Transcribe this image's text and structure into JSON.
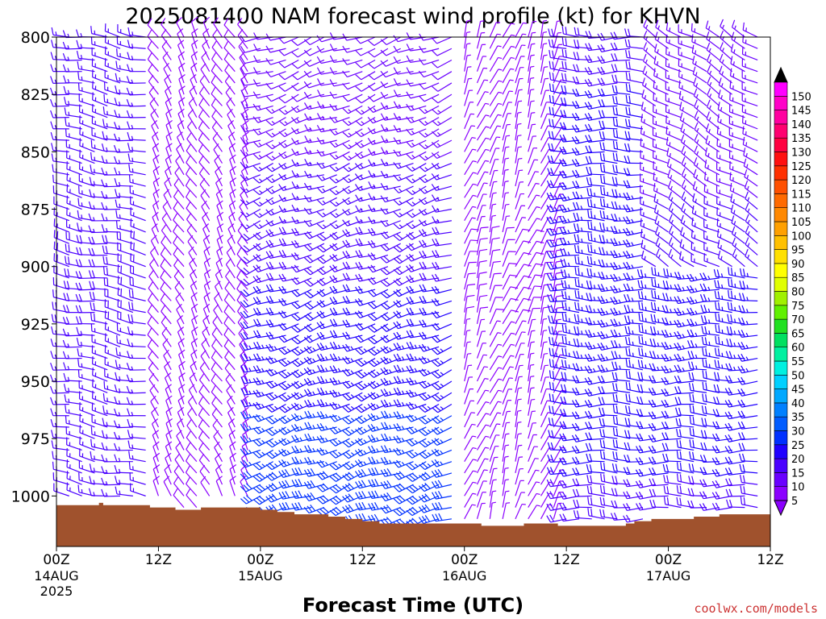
{
  "chart_data": {
    "type": "wind_barb_profile",
    "title": "2025081400 NAM forecast wind profile (kt) for KHVN",
    "xlabel": "Forecast Time (UTC)",
    "ylabel": "",
    "credit": "coolwx.com/models",
    "x_range_hours": [
      0,
      84
    ],
    "x_ticks": [
      {
        "hour": 0,
        "label": "00Z",
        "date": "14AUG",
        "year": "2025"
      },
      {
        "hour": 12,
        "label": "12Z",
        "date": "",
        "year": ""
      },
      {
        "hour": 24,
        "label": "00Z",
        "date": "15AUG",
        "year": ""
      },
      {
        "hour": 36,
        "label": "12Z",
        "date": "",
        "year": ""
      },
      {
        "hour": 48,
        "label": "00Z",
        "date": "16AUG",
        "year": ""
      },
      {
        "hour": 60,
        "label": "12Z",
        "date": "",
        "year": ""
      },
      {
        "hour": 72,
        "label": "00Z",
        "date": "17AUG",
        "year": ""
      },
      {
        "hour": 84,
        "label": "12Z",
        "date": "",
        "year": ""
      }
    ],
    "y_range_hpa": [
      800,
      1022
    ],
    "y_ticks": [
      {
        "p": 800,
        "label": "800"
      },
      {
        "p": 825,
        "label": "825"
      },
      {
        "p": 850,
        "label": "850"
      },
      {
        "p": 875,
        "label": "875"
      },
      {
        "p": 900,
        "label": "900"
      },
      {
        "p": 925,
        "label": "925"
      },
      {
        "p": 950,
        "label": "950"
      },
      {
        "p": 975,
        "label": "975"
      },
      {
        "p": 1000,
        "label": "1000"
      }
    ],
    "surface_pressure": [
      {
        "hour": 0,
        "p": 1004
      },
      {
        "hour": 4.5,
        "p": 1004
      },
      {
        "hour": 5,
        "p": 1003
      },
      {
        "hour": 5.5,
        "p": 1004
      },
      {
        "hour": 10.5,
        "p": 1004
      },
      {
        "hour": 11,
        "p": 1005
      },
      {
        "hour": 13.5,
        "p": 1005
      },
      {
        "hour": 14,
        "p": 1006
      },
      {
        "hour": 16.5,
        "p": 1006
      },
      {
        "hour": 17,
        "p": 1005
      },
      {
        "hour": 23.5,
        "p": 1005
      },
      {
        "hour": 24,
        "p": 1006
      },
      {
        "hour": 26,
        "p": 1007
      },
      {
        "hour": 28,
        "p": 1008
      },
      {
        "hour": 32,
        "p": 1009
      },
      {
        "hour": 34,
        "p": 1010
      },
      {
        "hour": 36,
        "p": 1011
      },
      {
        "hour": 38,
        "p": 1012
      },
      {
        "hour": 48,
        "p": 1012
      },
      {
        "hour": 50,
        "p": 1013
      },
      {
        "hour": 54,
        "p": 1013
      },
      {
        "hour": 55,
        "p": 1012
      },
      {
        "hour": 58,
        "p": 1012
      },
      {
        "hour": 59,
        "p": 1013
      },
      {
        "hour": 66,
        "p": 1013
      },
      {
        "hour": 67,
        "p": 1012
      },
      {
        "hour": 68,
        "p": 1011
      },
      {
        "hour": 70,
        "p": 1010
      },
      {
        "hour": 74,
        "p": 1010
      },
      {
        "hour": 75,
        "p": 1009
      },
      {
        "hour": 77,
        "p": 1009
      },
      {
        "hour": 78,
        "p": 1008
      },
      {
        "hour": 84,
        "p": 1008
      }
    ],
    "ground_color": "#a0522d",
    "levels_hpa": [
      800,
      805,
      810,
      815,
      820,
      825,
      830,
      835,
      840,
      845,
      850,
      855,
      860,
      865,
      870,
      875,
      880,
      885,
      890,
      895,
      900,
      905,
      910,
      915,
      920,
      925,
      930,
      935,
      940,
      945,
      950,
      955,
      960,
      965,
      970,
      975,
      980,
      985,
      990,
      995,
      1000,
      1005,
      1010,
      1015
    ],
    "time_step_hours": 1.5,
    "wind_field_regimes": [
      {
        "hours": [
          0,
          12
        ],
        "direction_deg": 280,
        "speed_kt": [
          12,
          18
        ]
      },
      {
        "hours": [
          12,
          24
        ],
        "direction_deg": 330,
        "speed_kt": [
          6,
          10
        ]
      },
      {
        "hours": [
          24,
          48
        ],
        "direction_deg": 250,
        "speed_kt": [
          10,
          30
        ],
        "note": "stronger below 925 hPa"
      },
      {
        "hours": [
          48,
          60
        ],
        "direction_deg": 20,
        "speed_kt": [
          3,
          8
        ],
        "note": "light and variable near 910 hPa"
      },
      {
        "hours": [
          60,
          84
        ],
        "direction_deg": 270,
        "speed_kt": [
          12,
          25
        ]
      },
      {
        "hours": [
          70,
          84
        ],
        "direction_deg": 300,
        "speed_kt": [
          10,
          16
        ],
        "levels": "above 900 hPa"
      }
    ],
    "colorbar": {
      "min": 5,
      "max": 150,
      "step": 5,
      "labels": [
        "5",
        "10",
        "15",
        "20",
        "25",
        "30",
        "35",
        "40",
        "45",
        "50",
        "55",
        "60",
        "65",
        "70",
        "75",
        "80",
        "85",
        "90",
        "95",
        "100",
        "105",
        "110",
        "115",
        "120",
        "125",
        "130",
        "135",
        "140",
        "145",
        "150"
      ],
      "colors": [
        "#8b00ff",
        "#6a00ff",
        "#4a00ff",
        "#2000ff",
        "#0030ff",
        "#005cff",
        "#0080ff",
        "#00a8ff",
        "#00d0ff",
        "#00f0e0",
        "#00f0a0",
        "#00e060",
        "#20e020",
        "#60f000",
        "#a0f000",
        "#e0ff00",
        "#ffff00",
        "#ffe000",
        "#ffc000",
        "#ffa000",
        "#ff8800",
        "#ff6a00",
        "#ff5000",
        "#ff3000",
        "#ff1010",
        "#ff0040",
        "#ff0070",
        "#ff00a0",
        "#ff00c8",
        "#ff00ff"
      ]
    }
  }
}
